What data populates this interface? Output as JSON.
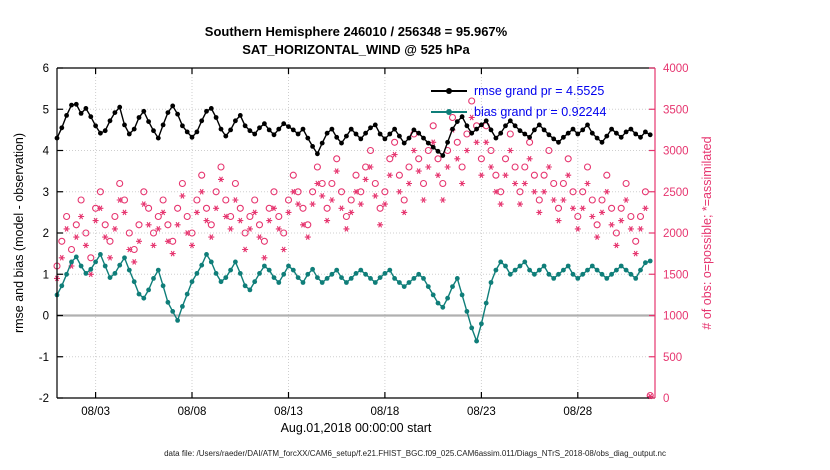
{
  "caption": "data file: /Users/raeder/DAI/ATM_forcXX/CAM6_setup/f.e21.FHIST_BGC.f09_025.CAM6assim.011/Diags_NTrS_2018-08/obs_diag_output.nc",
  "legend": {
    "text_color": "#0000ee",
    "entries": [
      {
        "label": "rmse grand pr = 4.5525",
        "color": "#000000"
      },
      {
        "label": "bias grand pr = 0.92244",
        "color": "#0f7e79"
      }
    ]
  },
  "chart_data": {
    "type": "line",
    "title": "Southern Hemisphere 246010 / 256348 = 95.967%",
    "subtitle": "SAT_HORIZONTAL_WIND @ 525 hPa",
    "xlabel": "Aug.01,2018 00:00:00 start",
    "ylabel_left": "rmse and bias (model - observation)",
    "ylabel_right": "# of obs: o=possible; *=assimilated",
    "ylim_left": [
      -2,
      6
    ],
    "ylim_right": [
      0,
      4000
    ],
    "xlim_days": [
      0,
      31
    ],
    "x_start": 0,
    "x_step_days": 0.25,
    "grid": true,
    "axis_color_right": "#e6356f",
    "zero_line_color": "#b0b0b0",
    "xticks": [
      {
        "t": 2,
        "label": "08/03"
      },
      {
        "t": 7,
        "label": "08/08"
      },
      {
        "t": 12,
        "label": "08/13"
      },
      {
        "t": 17,
        "label": "08/18"
      },
      {
        "t": 22,
        "label": "08/23"
      },
      {
        "t": 27,
        "label": "08/28"
      }
    ],
    "yticks_left": [
      6,
      5,
      4,
      3,
      2,
      1,
      0,
      -1,
      -2
    ],
    "yticks_right": [
      4000,
      3500,
      3000,
      2500,
      2000,
      1500,
      1000,
      500,
      0
    ],
    "series": [
      {
        "name": "rmse",
        "axis": "left",
        "color": "#000000",
        "marker": "dot",
        "line": true,
        "values": [
          4.3,
          4.55,
          4.85,
          5.1,
          5.12,
          4.9,
          5.02,
          4.82,
          4.6,
          4.42,
          4.48,
          4.72,
          4.92,
          5.05,
          4.62,
          4.4,
          4.52,
          4.8,
          4.95,
          4.7,
          4.48,
          4.3,
          4.62,
          4.92,
          5.08,
          4.88,
          4.6,
          4.45,
          4.32,
          4.45,
          4.72,
          4.95,
          5.02,
          4.8,
          4.52,
          4.35,
          4.5,
          4.72,
          4.85,
          4.6,
          4.48,
          4.4,
          4.55,
          4.65,
          4.5,
          4.38,
          4.52,
          4.65,
          4.58,
          4.5,
          4.4,
          4.52,
          4.3,
          4.1,
          3.92,
          4.18,
          4.42,
          4.52,
          4.32,
          4.18,
          4.35,
          4.52,
          4.4,
          4.28,
          4.42,
          4.55,
          4.62,
          4.4,
          4.28,
          4.4,
          4.52,
          4.35,
          4.18,
          4.3,
          4.5,
          4.42,
          4.3,
          4.18,
          4.08,
          3.98,
          3.88,
          4.2,
          4.52,
          4.7,
          4.82,
          4.6,
          4.42,
          4.52,
          4.62,
          4.72,
          4.5,
          4.3,
          4.42,
          4.6,
          4.72,
          4.6,
          4.48,
          4.4,
          4.32,
          4.5,
          4.62,
          4.5,
          4.38,
          4.28,
          4.2,
          4.32,
          4.42,
          4.52,
          4.4,
          4.5,
          4.62,
          4.42,
          4.3,
          4.2,
          4.35,
          4.52,
          4.42,
          4.32,
          4.45,
          4.52,
          4.4,
          4.32,
          4.45,
          4.38
        ]
      },
      {
        "name": "bias",
        "axis": "left",
        "color": "#0f7e79",
        "marker": "dot",
        "line": true,
        "values": [
          0.5,
          0.72,
          1.0,
          1.3,
          1.42,
          1.2,
          1.02,
          1.12,
          1.3,
          1.48,
          1.2,
          0.92,
          1.02,
          1.22,
          1.4,
          1.1,
          0.82,
          0.52,
          0.42,
          0.62,
          0.9,
          1.1,
          0.72,
          0.32,
          0.1,
          -0.12,
          0.22,
          0.52,
          0.82,
          1.02,
          1.22,
          1.48,
          1.3,
          1.02,
          0.82,
          0.92,
          1.1,
          1.3,
          1.02,
          0.72,
          0.62,
          0.82,
          1.02,
          1.2,
          1.1,
          0.92,
          0.8,
          1.0,
          1.2,
          1.1,
          0.92,
          0.8,
          1.0,
          1.12,
          0.92,
          0.8,
          0.9,
          1.0,
          1.1,
          0.92,
          0.8,
          0.9,
          1.02,
          1.1,
          1.0,
          0.9,
          0.8,
          0.92,
          1.02,
          1.1,
          0.9,
          0.8,
          0.7,
          0.8,
          0.9,
          1.0,
          0.9,
          0.7,
          0.5,
          0.3,
          0.2,
          0.42,
          0.7,
          0.9,
          0.5,
          0.1,
          -0.3,
          -0.62,
          -0.2,
          0.3,
          0.8,
          1.1,
          1.3,
          1.2,
          1.0,
          1.1,
          1.2,
          1.3,
          1.1,
          1.0,
          1.1,
          1.2,
          1.0,
          0.9,
          1.0,
          1.1,
          1.2,
          1.0,
          0.9,
          1.0,
          1.1,
          1.2,
          1.1,
          1.0,
          0.9,
          1.0,
          1.1,
          1.2,
          1.1,
          1.0,
          0.9,
          1.1,
          1.28,
          1.32
        ]
      },
      {
        "name": "possible",
        "axis": "right",
        "color": "#e6356f",
        "marker": "open-circle",
        "line": false,
        "values": [
          1600,
          1900,
          2200,
          1800,
          2100,
          2400,
          2000,
          1700,
          2300,
          2500,
          2100,
          1900,
          2200,
          2600,
          2400,
          2000,
          1800,
          2100,
          2500,
          2300,
          2000,
          2200,
          2400,
          2100,
          1900,
          2300,
          2600,
          2200,
          2000,
          2400,
          2700,
          2300,
          2100,
          2500,
          2800,
          2400,
          2200,
          2600,
          2300,
          2000,
          2200,
          2400,
          2100,
          1900,
          2300,
          2500,
          2200,
          2000,
          2400,
          2700,
          2500,
          2300,
          2100,
          2500,
          2800,
          2600,
          2300,
          2600,
          2900,
          2500,
          2200,
          2400,
          2700,
          2500,
          2800,
          3000,
          2600,
          2300,
          2500,
          2900,
          3100,
          2700,
          2400,
          2800,
          3200,
          2900,
          2600,
          3000,
          3300,
          2900,
          2600,
          3000,
          3400,
          3100,
          2800,
          3200,
          3600,
          3300,
          2900,
          3300,
          3000,
          2700,
          2500,
          2900,
          3200,
          2800,
          2500,
          2800,
          3100,
          2700,
          2400,
          2700,
          3000,
          2600,
          2300,
          2600,
          2900,
          2500,
          2200,
          2500,
          2800,
          2400,
          2100,
          2400,
          2700,
          2300,
          2000,
          2300,
          2600,
          2200,
          1900,
          2200,
          2500,
          30
        ]
      },
      {
        "name": "assimilated",
        "axis": "right",
        "color": "#e6356f",
        "marker": "asterisk",
        "line": false,
        "values": [
          1450,
          1700,
          2050,
          1600,
          1950,
          2200,
          1850,
          1500,
          2150,
          2300,
          1950,
          1700,
          2050,
          2400,
          2250,
          1800,
          1650,
          1900,
          2350,
          2100,
          1850,
          2050,
          2250,
          1900,
          1750,
          2100,
          2450,
          2000,
          1850,
          2250,
          2500,
          2150,
          1950,
          2300,
          2650,
          2200,
          2050,
          2400,
          2150,
          1800,
          2050,
          2250,
          1950,
          1700,
          2150,
          2300,
          2050,
          1800,
          2250,
          2500,
          2350,
          2100,
          1950,
          2350,
          2600,
          2450,
          2150,
          2400,
          2750,
          2300,
          2050,
          2250,
          2500,
          2350,
          2650,
          2800,
          2450,
          2100,
          2350,
          2700,
          2950,
          2500,
          2250,
          2600,
          3000,
          2750,
          2400,
          2800,
          3100,
          2700,
          2400,
          2800,
          3250,
          2900,
          2600,
          3000,
          3400,
          3100,
          2700,
          3100,
          2800,
          2500,
          2350,
          2700,
          3000,
          2600,
          2350,
          2600,
          2900,
          2500,
          2250,
          2500,
          2800,
          2400,
          2150,
          2400,
          2700,
          2300,
          2050,
          2300,
          2600,
          2200,
          1950,
          2250,
          2500,
          2100,
          1850,
          2150,
          2400,
          2050,
          1750,
          2050,
          2300,
          20
        ]
      }
    ]
  }
}
